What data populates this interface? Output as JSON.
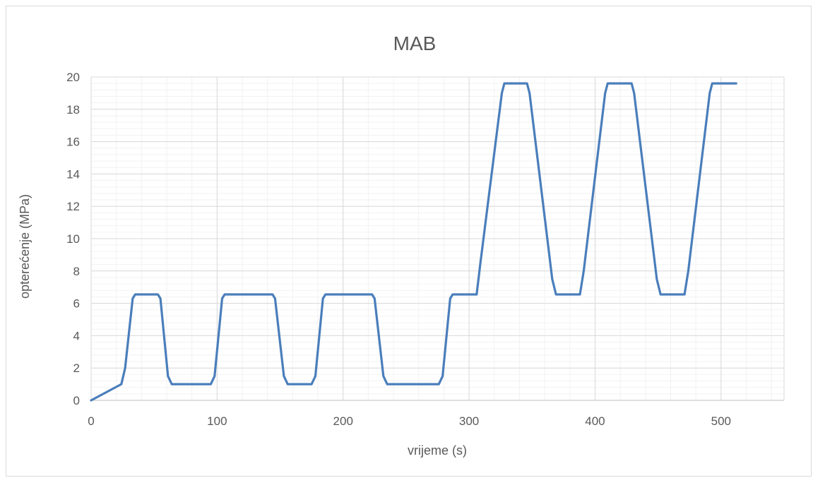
{
  "chart_data": {
    "type": "line",
    "title": "MAB",
    "xlabel": "vrijeme (s)",
    "ylabel": "opterećenje (MPa)",
    "xlim": [
      0,
      550
    ],
    "ylim": [
      0,
      20
    ],
    "x_ticks": [
      0,
      100,
      200,
      300,
      400,
      500
    ],
    "y_ticks": [
      0,
      2,
      4,
      6,
      8,
      10,
      12,
      14,
      16,
      18,
      20
    ],
    "grid": "major and minor",
    "legend": "none",
    "series": [
      {
        "color": "#4a7ebb",
        "points": [
          [
            0,
            0
          ],
          [
            24,
            1.0
          ],
          [
            27,
            2.0
          ],
          [
            33,
            6.3
          ],
          [
            35,
            6.55
          ],
          [
            53,
            6.55
          ],
          [
            55,
            6.3
          ],
          [
            61,
            1.5
          ],
          [
            64,
            1.0
          ],
          [
            95,
            1.0
          ],
          [
            98,
            1.5
          ],
          [
            104,
            6.3
          ],
          [
            106,
            6.55
          ],
          [
            144,
            6.55
          ],
          [
            146,
            6.3
          ],
          [
            153,
            1.5
          ],
          [
            156,
            1.0
          ],
          [
            175,
            1.0
          ],
          [
            178,
            1.5
          ],
          [
            184,
            6.3
          ],
          [
            186,
            6.55
          ],
          [
            223,
            6.55
          ],
          [
            225,
            6.3
          ],
          [
            232,
            1.5
          ],
          [
            235,
            1.0
          ],
          [
            276,
            1.0
          ],
          [
            279,
            1.5
          ],
          [
            285,
            6.3
          ],
          [
            287,
            6.55
          ],
          [
            306,
            6.55
          ],
          [
            309,
            8.5
          ],
          [
            326,
            19.0
          ],
          [
            328,
            19.6
          ],
          [
            346,
            19.6
          ],
          [
            348,
            19.0
          ],
          [
            366,
            7.5
          ],
          [
            369,
            6.55
          ],
          [
            388,
            6.55
          ],
          [
            391,
            8.0
          ],
          [
            408,
            19.0
          ],
          [
            410,
            19.6
          ],
          [
            429,
            19.6
          ],
          [
            431,
            19.0
          ],
          [
            449,
            7.5
          ],
          [
            452,
            6.55
          ],
          [
            471,
            6.55
          ],
          [
            474,
            8.0
          ],
          [
            491,
            19.0
          ],
          [
            493,
            19.6
          ],
          [
            512,
            19.6
          ]
        ]
      }
    ]
  }
}
